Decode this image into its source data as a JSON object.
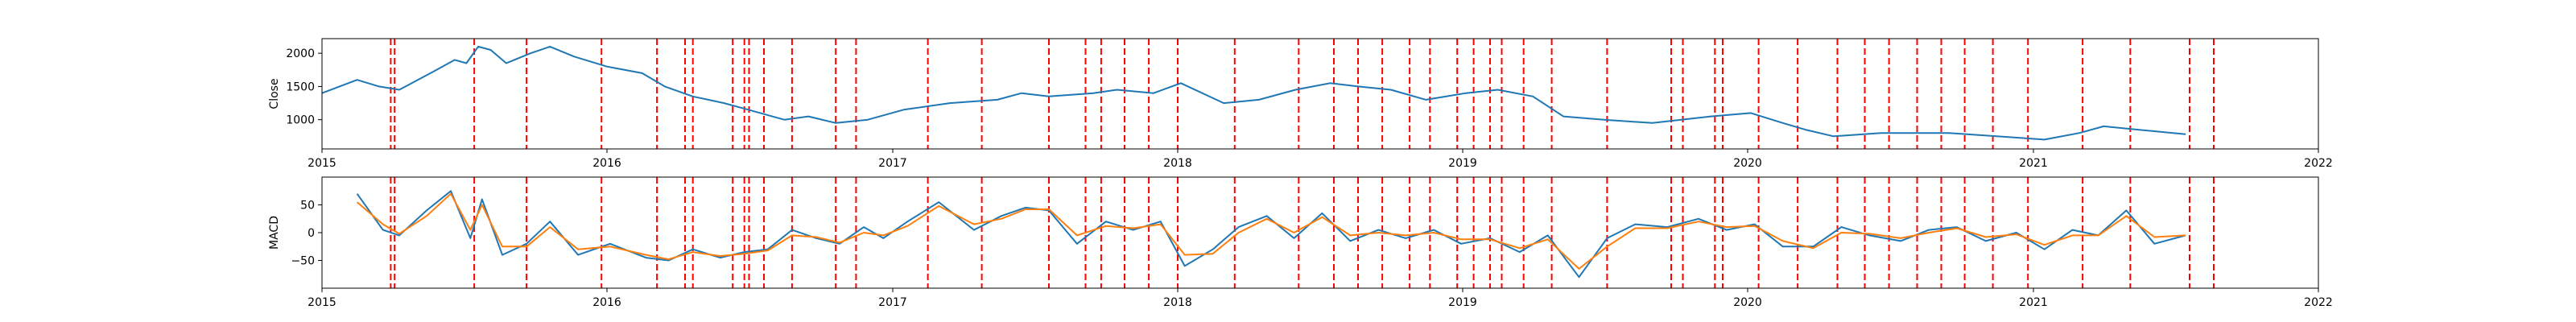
{
  "chart_data": [
    {
      "type": "line",
      "ylabel": "Close",
      "xlim": [
        "2015-01-01",
        "2022-01-01"
      ],
      "ylim": [
        560,
        2220
      ],
      "x_ticks": [
        "2015",
        "2016",
        "2017",
        "2018",
        "2019",
        "2020",
        "2021",
        "2022"
      ],
      "y_ticks": [
        1000,
        1500,
        2000
      ],
      "series": [
        {
          "color": "#1f77b4",
          "x": [
            "2015-01-01",
            "2015-02-15",
            "2015-03-15",
            "2015-04-10",
            "2015-05-20",
            "2015-06-20",
            "2015-07-05",
            "2015-07-20",
            "2015-08-05",
            "2015-08-25",
            "2015-09-25",
            "2015-10-20",
            "2015-11-20",
            "2016-01-01",
            "2016-02-15",
            "2016-03-15",
            "2016-04-20",
            "2016-05-30",
            "2016-06-30",
            "2016-08-15",
            "2016-09-15",
            "2016-10-20",
            "2016-11-30",
            "2017-01-15",
            "2017-03-15",
            "2017-05-15",
            "2017-06-15",
            "2017-07-20",
            "2017-09-15",
            "2017-10-15",
            "2017-12-01",
            "2018-01-05",
            "2018-03-01",
            "2018-04-15",
            "2018-06-01",
            "2018-07-15",
            "2018-08-20",
            "2018-10-01",
            "2018-11-15",
            "2019-01-05",
            "2019-02-15",
            "2019-04-01",
            "2019-05-10",
            "2019-07-01",
            "2019-09-01",
            "2019-11-15",
            "2020-01-05",
            "2020-02-15",
            "2020-03-15",
            "2020-04-20",
            "2020-06-20",
            "2020-09-15",
            "2020-11-15",
            "2021-01-15",
            "2021-03-01",
            "2021-04-01",
            "2021-05-15",
            "2021-07-15"
          ],
          "values": [
            1400,
            1600,
            1500,
            1450,
            1700,
            1900,
            1850,
            2100,
            2050,
            1850,
            2000,
            2100,
            1950,
            1800,
            1700,
            1500,
            1350,
            1250,
            1150,
            1000,
            1050,
            950,
            1000,
            1150,
            1250,
            1300,
            1400,
            1350,
            1400,
            1450,
            1400,
            1550,
            1250,
            1300,
            1450,
            1550,
            1500,
            1450,
            1300,
            1400,
            1450,
            1350,
            1050,
            1000,
            950,
            1050,
            1100,
            950,
            850,
            750,
            800,
            800,
            750,
            700,
            800,
            900,
            850,
            780
          ]
        }
      ]
    },
    {
      "type": "line",
      "ylabel": "MACD",
      "xlim": [
        "2015-01-01",
        "2022-01-01"
      ],
      "ylim": [
        -100,
        100
      ],
      "x_ticks": [
        "2015",
        "2016",
        "2017",
        "2018",
        "2019",
        "2020",
        "2021",
        "2022"
      ],
      "y_ticks": [
        -50,
        0,
        50
      ],
      "series": [
        {
          "color": "#1f77b4",
          "x": [
            "2015-02-15",
            "2015-03-20",
            "2015-04-10",
            "2015-05-15",
            "2015-06-15",
            "2015-07-10",
            "2015-07-25",
            "2015-08-20",
            "2015-09-20",
            "2015-10-20",
            "2015-11-25",
            "2016-01-05",
            "2016-02-20",
            "2016-03-20",
            "2016-04-20",
            "2016-05-25",
            "2016-06-25",
            "2016-07-25",
            "2016-08-25",
            "2016-09-25",
            "2016-10-25",
            "2016-11-25",
            "2016-12-20",
            "2017-01-20",
            "2017-03-01",
            "2017-04-15",
            "2017-05-20",
            "2017-06-20",
            "2017-07-20",
            "2017-08-25",
            "2017-10-01",
            "2017-11-05",
            "2017-12-10",
            "2018-01-10",
            "2018-02-15",
            "2018-03-20",
            "2018-04-25",
            "2018-05-30",
            "2018-07-05",
            "2018-08-10",
            "2018-09-15",
            "2018-10-20",
            "2018-11-25",
            "2018-12-30",
            "2019-02-05",
            "2019-03-15",
            "2019-04-20",
            "2019-05-30",
            "2019-07-05",
            "2019-08-10",
            "2019-09-20",
            "2019-10-30",
            "2019-12-05",
            "2020-01-10",
            "2020-02-15",
            "2020-03-25",
            "2020-04-30",
            "2020-06-05",
            "2020-07-15",
            "2020-08-20",
            "2020-09-25",
            "2020-11-01",
            "2020-12-10",
            "2021-01-15",
            "2021-02-20",
            "2021-03-25",
            "2021-04-30",
            "2021-06-05",
            "2021-07-15"
          ],
          "values": [
            70,
            5,
            -5,
            40,
            75,
            -10,
            60,
            -40,
            -20,
            20,
            -40,
            -20,
            -45,
            -50,
            -30,
            -45,
            -35,
            -30,
            5,
            -10,
            -20,
            10,
            -10,
            20,
            55,
            5,
            30,
            45,
            40,
            -20,
            20,
            5,
            20,
            -60,
            -30,
            10,
            30,
            -10,
            35,
            -15,
            5,
            -10,
            5,
            -20,
            -10,
            -35,
            -5,
            -80,
            -10,
            15,
            10,
            25,
            5,
            15,
            -25,
            -25,
            10,
            -5,
            -15,
            5,
            10,
            -15,
            0,
            -30,
            5,
            -5,
            40,
            -20,
            -5
          ]
        },
        {
          "color": "#ff7f0e",
          "x": [
            "2015-02-15",
            "2015-03-20",
            "2015-04-10",
            "2015-05-15",
            "2015-06-15",
            "2015-07-10",
            "2015-07-25",
            "2015-08-20",
            "2015-09-20",
            "2015-10-20",
            "2015-11-25",
            "2016-01-05",
            "2016-02-20",
            "2016-03-20",
            "2016-04-20",
            "2016-05-25",
            "2016-06-25",
            "2016-07-25",
            "2016-08-25",
            "2016-09-25",
            "2016-10-25",
            "2016-11-25",
            "2016-12-20",
            "2017-01-20",
            "2017-03-01",
            "2017-04-15",
            "2017-05-20",
            "2017-06-20",
            "2017-07-20",
            "2017-08-25",
            "2017-10-01",
            "2017-11-05",
            "2017-12-10",
            "2018-01-10",
            "2018-02-15",
            "2018-03-20",
            "2018-04-25",
            "2018-05-30",
            "2018-07-05",
            "2018-08-10",
            "2018-09-15",
            "2018-10-20",
            "2018-11-25",
            "2018-12-30",
            "2019-02-05",
            "2019-03-15",
            "2019-04-20",
            "2019-05-30",
            "2019-07-05",
            "2019-08-10",
            "2019-09-20",
            "2019-10-30",
            "2019-12-05",
            "2020-01-10",
            "2020-02-15",
            "2020-03-25",
            "2020-04-30",
            "2020-06-05",
            "2020-07-15",
            "2020-08-20",
            "2020-09-25",
            "2020-11-01",
            "2020-12-10",
            "2021-01-15",
            "2021-02-20",
            "2021-03-25",
            "2021-04-30",
            "2021-06-05",
            "2021-07-15"
          ],
          "values": [
            55,
            15,
            -2,
            30,
            70,
            5,
            50,
            -25,
            -25,
            10,
            -30,
            -25,
            -40,
            -48,
            -35,
            -42,
            -38,
            -32,
            -5,
            -8,
            -18,
            0,
            -5,
            12,
            48,
            15,
            25,
            42,
            42,
            -5,
            12,
            8,
            15,
            -40,
            -38,
            0,
            25,
            0,
            28,
            -5,
            0,
            -5,
            0,
            -12,
            -12,
            -28,
            -12,
            -65,
            -25,
            8,
            8,
            20,
            10,
            12,
            -15,
            -28,
            0,
            -2,
            -10,
            0,
            8,
            -8,
            -3,
            -22,
            -5,
            -5,
            30,
            -8,
            -5
          ]
        }
      ]
    }
  ],
  "event_markers": {
    "color": "#ff0000",
    "dates": [
      "2015-03-30",
      "2015-04-04",
      "2015-07-15",
      "2015-09-20",
      "2015-12-25",
      "2016-03-05",
      "2016-04-10",
      "2016-04-20",
      "2016-06-10",
      "2016-06-25",
      "2016-07-01",
      "2016-07-20",
      "2016-08-25",
      "2016-10-20",
      "2016-11-15",
      "2017-02-15",
      "2017-04-25",
      "2017-07-20",
      "2017-09-05",
      "2017-09-25",
      "2017-10-25",
      "2017-11-25",
      "2018-01-01",
      "2018-03-15",
      "2018-06-05",
      "2018-07-20",
      "2018-08-20",
      "2018-09-20",
      "2018-10-25",
      "2018-11-20",
      "2018-12-25",
      "2019-01-15",
      "2019-02-05",
      "2019-02-20",
      "2019-03-20",
      "2019-04-25",
      "2019-07-05",
      "2019-09-25",
      "2019-10-10",
      "2019-11-20",
      "2019-11-30",
      "2020-01-15",
      "2020-03-05",
      "2020-04-25",
      "2020-05-30",
      "2020-06-30",
      "2020-08-05",
      "2020-09-05",
      "2020-10-05",
      "2020-11-10",
      "2020-12-25",
      "2021-03-05",
      "2021-05-05",
      "2021-07-20",
      "2021-08-20"
    ]
  }
}
